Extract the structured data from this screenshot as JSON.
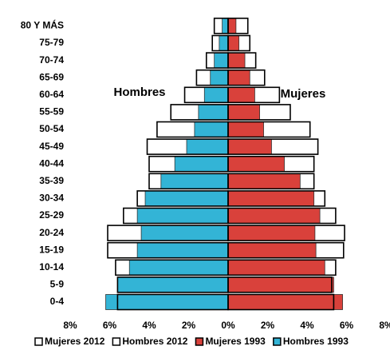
{
  "chart_data": {
    "type": "pyramid",
    "categories": [
      "0-4",
      "5-9",
      "10-14",
      "15-19",
      "20-24",
      "25-29",
      "30-34",
      "35-39",
      "40-44",
      "45-49",
      "50-54",
      "55-59",
      "60-64",
      "65-69",
      "70-74",
      "75-79",
      "80 Y MÁS"
    ],
    "series": [
      {
        "name": "Mujeres 2012",
        "color": "#ffffff",
        "values": [
          5.35,
          5.25,
          5.45,
          5.85,
          5.9,
          5.45,
          4.9,
          4.35,
          4.35,
          4.55,
          4.15,
          3.15,
          2.6,
          1.85,
          1.4,
          1.1,
          1.0
        ]
      },
      {
        "name": "Hombres 2012",
        "color": "#ffffff",
        "values": [
          -5.6,
          -5.6,
          -5.7,
          -6.1,
          -6.1,
          -5.3,
          -4.6,
          -4.0,
          -4.0,
          -4.1,
          -3.6,
          -2.9,
          -2.2,
          -1.6,
          -1.1,
          -0.8,
          -0.7
        ]
      },
      {
        "name": "Mujeres 1993",
        "color": "#d9413b",
        "values": [
          5.8,
          5.35,
          4.9,
          4.45,
          4.4,
          4.65,
          4.35,
          3.65,
          2.85,
          2.2,
          1.8,
          1.6,
          1.35,
          1.1,
          0.85,
          0.55,
          0.4
        ]
      },
      {
        "name": "Hombres 1993",
        "color": "#33b4d6",
        "values": [
          -6.2,
          -5.6,
          -5.0,
          -4.6,
          -4.4,
          -4.6,
          -4.2,
          -3.4,
          -2.7,
          -2.1,
          -1.7,
          -1.5,
          -1.2,
          -0.9,
          -0.7,
          -0.45,
          -0.3
        ]
      }
    ],
    "xlim": [
      -8,
      8
    ],
    "xticks": [
      {
        "value": -8,
        "label": "8%"
      },
      {
        "value": -6,
        "label": "6%"
      },
      {
        "value": -4,
        "label": "4%"
      },
      {
        "value": -2,
        "label": "2%"
      },
      {
        "value": 0,
        "label": "0%"
      },
      {
        "value": 2,
        "label": "2%"
      },
      {
        "value": 4,
        "label": "4%"
      },
      {
        "value": 6,
        "label": "6%"
      },
      {
        "value": 8,
        "label": "8%"
      }
    ],
    "annotations": [
      "Hombres",
      "Mujeres"
    ]
  }
}
